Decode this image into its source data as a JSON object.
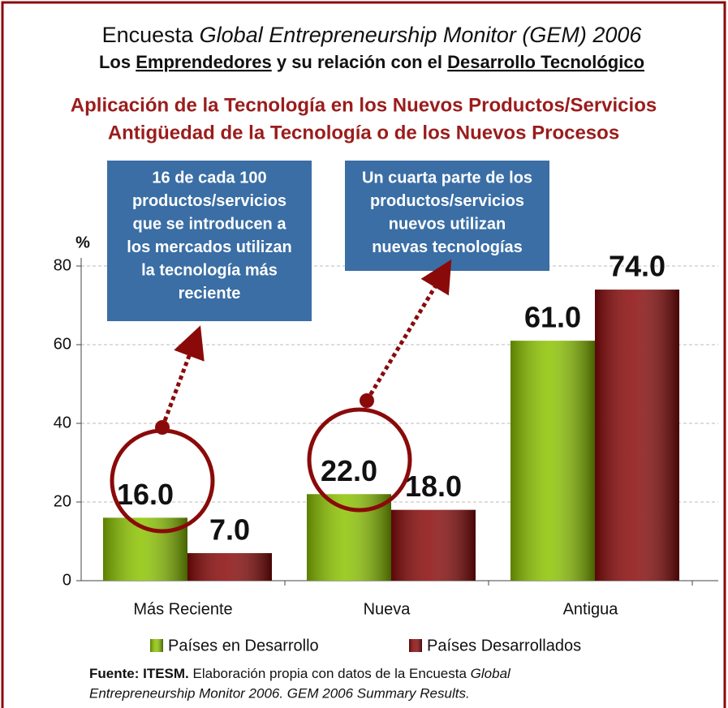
{
  "chart_data": {
    "type": "bar",
    "title": {
      "plain": "Encuesta",
      "italic": "Global Entrepreneurship Monitor (GEM) 2006"
    },
    "subtitle": [
      "Los",
      "Emprendedores",
      "y su relación con el",
      "Desarrollo Tecnológico"
    ],
    "headings": [
      "Aplicación de la Tecnología en los Nuevos Productos/Servicios",
      "Antigüedad de la Tecnología o de los Nuevos Procesos"
    ],
    "y_label": "%",
    "categories": [
      "Más Reciente",
      "Nueva",
      "Antigua"
    ],
    "series": [
      {
        "name": "Países en Desarrollo",
        "color": "#8cc400",
        "values": [
          16,
          22,
          61
        ],
        "value_labels": [
          "16.0",
          "22.0",
          "61.0"
        ]
      },
      {
        "name": "Países Desarrollados",
        "color": "#8a0a0a",
        "values": [
          7,
          18,
          74
        ],
        "value_labels": [
          "7.0",
          "18.0",
          "74.0"
        ]
      }
    ],
    "ylim": [
      0,
      80
    ],
    "yticks": [
      0,
      20,
      40,
      60,
      80
    ],
    "grid": true,
    "annotations": [
      {
        "lines": [
          "16 de cada 100",
          "productos/servicios",
          "que se introducen a",
          "los mercados utilizan",
          "la tecnología más",
          "reciente"
        ]
      },
      {
        "lines": [
          "Un cuarta parte de los",
          "productos/servicios",
          "nuevos utilizan",
          "nuevas tecnologías"
        ]
      }
    ],
    "source": {
      "bold": "Fuente: ITESM.",
      "text": "Elaboración propia con datos de la Encuesta",
      "italic": [
        "Global",
        "Entrepreneurship Monitor 2006. GEM 2006 Summary Results."
      ]
    }
  }
}
